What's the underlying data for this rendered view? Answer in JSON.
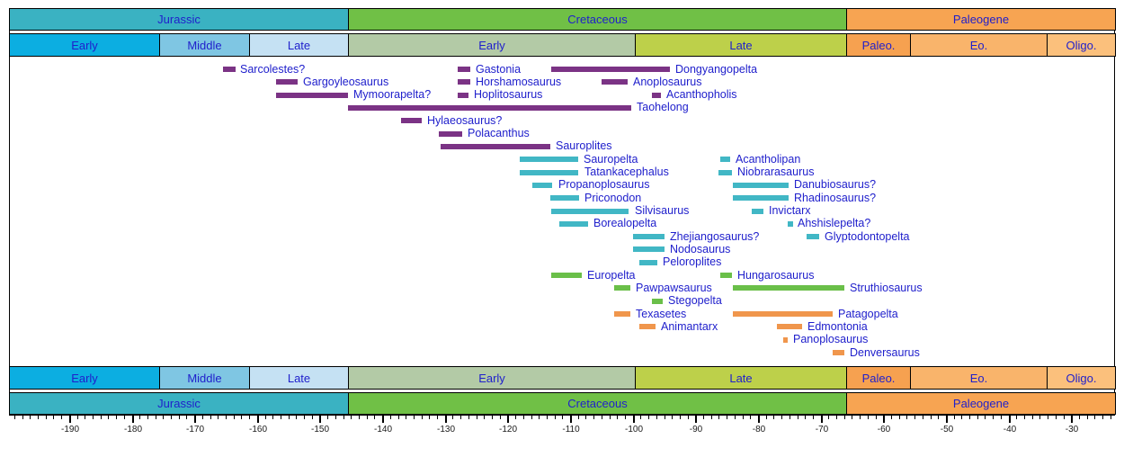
{
  "chart_data": {
    "type": "bar",
    "subtype": "taxon-range-timeline",
    "title": "",
    "unit": "Ma",
    "axis": {
      "min": -199.6,
      "max": -23.0,
      "major_ticks": [
        -190,
        -180,
        -170,
        -160,
        -150,
        -140,
        -130,
        -120,
        -110,
        -100,
        -90,
        -80,
        -70,
        -60,
        -50,
        -40,
        -30
      ],
      "minor_step": 1.25,
      "grid": false
    },
    "periods": [
      {
        "label": "Jurassic",
        "from": -199.6,
        "to": -145.5,
        "color": "#3ab2c2"
      },
      {
        "label": "Cretaceous",
        "from": -145.5,
        "to": -66.0,
        "color": "#70c046"
      },
      {
        "label": "Paleogene",
        "from": -66.0,
        "to": -23.0,
        "color": "#f7a452"
      }
    ],
    "epochs": [
      {
        "label": "Early",
        "from": -199.6,
        "to": -175.6,
        "color": "#0caee1"
      },
      {
        "label": "Middle",
        "from": -175.6,
        "to": -161.2,
        "color": "#7fc6e3"
      },
      {
        "label": "Late",
        "from": -161.2,
        "to": -145.5,
        "color": "#c5e1f3"
      },
      {
        "label": "Early",
        "from": -145.5,
        "to": -99.6,
        "color": "#b3caa6"
      },
      {
        "label": "Late",
        "from": -99.6,
        "to": -66.0,
        "color": "#bdd04a"
      },
      {
        "label": "Paleo.",
        "from": -66.0,
        "to": -55.8,
        "color": "#f6a150"
      },
      {
        "label": "Eo.",
        "from": -55.8,
        "to": -33.9,
        "color": "#f9b46b"
      },
      {
        "label": "Oligo.",
        "from": -33.9,
        "to": -23.0,
        "color": "#fbc07c"
      }
    ],
    "groups": {
      "purple": "#7b3385",
      "teal": "#41b7c5",
      "green": "#6abf49",
      "orange": "#f0964c"
    },
    "taxa": [
      {
        "name": "Sarcolestes?",
        "from": -165.5,
        "to": -163.5,
        "row": 0,
        "group": "purple"
      },
      {
        "name": "Gastonia",
        "from": -128.0,
        "to": -126.0,
        "row": 0,
        "group": "purple"
      },
      {
        "name": "Dongyangopelta",
        "from": -113.0,
        "to": -94.0,
        "row": 0,
        "group": "purple"
      },
      {
        "name": "Gargoyleosaurus",
        "from": -157.0,
        "to": -153.5,
        "row": 1,
        "group": "purple"
      },
      {
        "name": "Horshamosaurus",
        "from": -128.0,
        "to": -126.0,
        "row": 1,
        "group": "purple"
      },
      {
        "name": "Anoplosaurus",
        "from": -105.0,
        "to": -100.8,
        "row": 1,
        "group": "purple"
      },
      {
        "name": "Mymoorapelta?",
        "from": -157.0,
        "to": -145.5,
        "row": 2,
        "group": "purple"
      },
      {
        "name": "Hoplitosaurus",
        "from": -128.0,
        "to": -126.3,
        "row": 2,
        "group": "purple"
      },
      {
        "name": "Acanthopholis",
        "from": -97.0,
        "to": -95.5,
        "row": 2,
        "group": "purple"
      },
      {
        "name": "Taohelong",
        "from": -145.5,
        "to": -100.3,
        "row": 3,
        "group": "purple"
      },
      {
        "name": "Hylaeosaurus?",
        "from": -137.0,
        "to": -133.7,
        "row": 4,
        "group": "purple"
      },
      {
        "name": "Polacanthus",
        "from": -131.0,
        "to": -127.2,
        "row": 5,
        "group": "purple"
      },
      {
        "name": "Sauroplites",
        "from": -130.7,
        "to": -113.2,
        "row": 6,
        "group": "purple"
      },
      {
        "name": "Sauropelta",
        "from": -118.0,
        "to": -108.7,
        "row": 7,
        "group": "teal"
      },
      {
        "name": "Acantholipan",
        "from": -86.0,
        "to": -84.4,
        "row": 7,
        "group": "teal"
      },
      {
        "name": "Tatankacephalus",
        "from": -118.0,
        "to": -108.6,
        "row": 8,
        "group": "teal"
      },
      {
        "name": "Niobrarasaurus",
        "from": -86.3,
        "to": -84.2,
        "row": 8,
        "group": "teal"
      },
      {
        "name": "Propanoplosaurus",
        "from": -116.0,
        "to": -112.8,
        "row": 9,
        "group": "teal"
      },
      {
        "name": "Danubiosaurus?",
        "from": -84.0,
        "to": -75.1,
        "row": 9,
        "group": "teal"
      },
      {
        "name": "Priconodon",
        "from": -113.2,
        "to": -108.6,
        "row": 10,
        "group": "teal"
      },
      {
        "name": "Rhadinosaurus?",
        "from": -84.0,
        "to": -75.1,
        "row": 10,
        "group": "teal"
      },
      {
        "name": "Silvisaurus",
        "from": -113.0,
        "to": -100.6,
        "row": 11,
        "group": "teal"
      },
      {
        "name": "Invictarx",
        "from": -81.0,
        "to": -79.1,
        "row": 11,
        "group": "teal"
      },
      {
        "name": "Borealopelta",
        "from": -111.8,
        "to": -107.2,
        "row": 12,
        "group": "teal"
      },
      {
        "name": "Ahshislepelta?",
        "from": -75.3,
        "to": -74.5,
        "row": 12,
        "group": "teal"
      },
      {
        "name": "Zhejiangosaurus?",
        "from": -100.0,
        "to": -95.0,
        "row": 13,
        "group": "teal"
      },
      {
        "name": "Glyptodontopelta",
        "from": -72.2,
        "to": -70.2,
        "row": 13,
        "group": "teal"
      },
      {
        "name": "Nodosaurus",
        "from": -100.0,
        "to": -95.0,
        "row": 14,
        "group": "teal"
      },
      {
        "name": "Peloroplites",
        "from": -98.9,
        "to": -96.1,
        "row": 15,
        "group": "teal"
      },
      {
        "name": "Europelta",
        "from": -113.0,
        "to": -108.1,
        "row": 16,
        "group": "green"
      },
      {
        "name": "Hungarosaurus",
        "from": -86.0,
        "to": -84.2,
        "row": 16,
        "group": "green"
      },
      {
        "name": "Pawpawsaurus",
        "from": -103.0,
        "to": -100.4,
        "row": 17,
        "group": "green"
      },
      {
        "name": "Struthiosaurus",
        "from": -84.0,
        "to": -66.2,
        "row": 17,
        "group": "green"
      },
      {
        "name": "Stegopelta",
        "from": -96.9,
        "to": -95.2,
        "row": 18,
        "group": "green"
      },
      {
        "name": "Texasetes",
        "from": -103.0,
        "to": -100.4,
        "row": 19,
        "group": "orange"
      },
      {
        "name": "Patagopelta",
        "from": -84.0,
        "to": -68.1,
        "row": 19,
        "group": "orange"
      },
      {
        "name": "Animantarx",
        "from": -99.0,
        "to": -96.4,
        "row": 20,
        "group": "orange"
      },
      {
        "name": "Edmontonia",
        "from": -77.0,
        "to": -73.0,
        "row": 20,
        "group": "orange"
      },
      {
        "name": "Panoplosaurus",
        "from": -76.0,
        "to": -75.3,
        "row": 21,
        "group": "orange"
      },
      {
        "name": "Denversaurus",
        "from": -68.1,
        "to": -66.2,
        "row": 22,
        "group": "orange"
      }
    ]
  }
}
